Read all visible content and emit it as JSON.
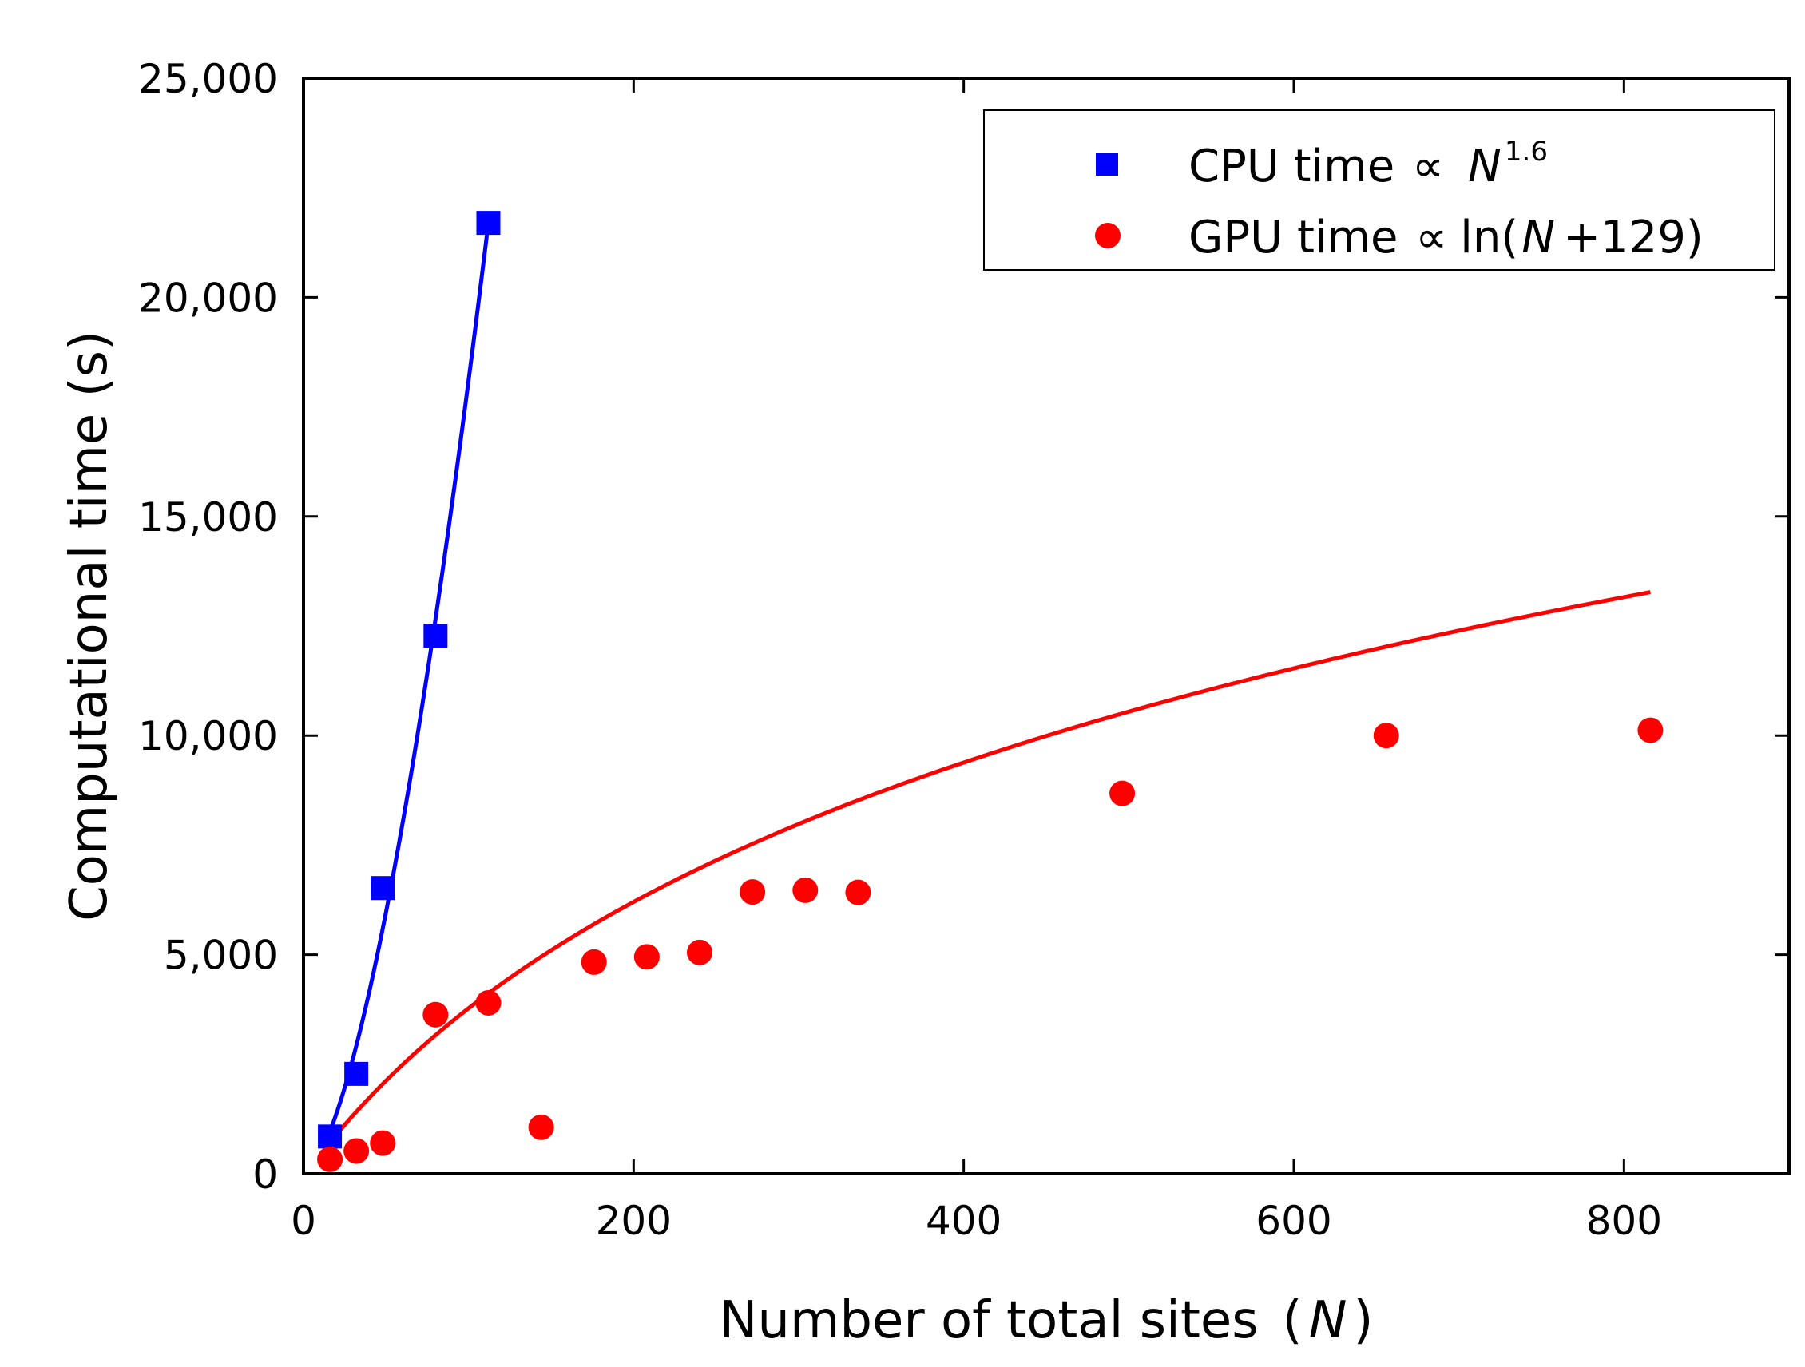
{
  "chart_data": {
    "type": "scatter",
    "title": "",
    "xlabel": "Number of total sites",
    "xlabel_symbol": "N",
    "ylabel": "Computational time (s)",
    "xlim": [
      0,
      900
    ],
    "ylim": [
      0,
      25000
    ],
    "x_ticks": [
      0,
      200,
      400,
      600,
      800
    ],
    "x_tick_labels": [
      "0",
      "200",
      "400",
      "600",
      "800"
    ],
    "y_ticks": [
      0,
      5000,
      10000,
      15000,
      20000,
      25000
    ],
    "y_tick_labels": [
      "0",
      "5,000",
      "10,000",
      "15,000",
      "20,000",
      "25,000"
    ],
    "legend_position": "top-right",
    "series": [
      {
        "name": "CPU time",
        "legend_prefix": "CPU time ",
        "legend_symbol": "N",
        "legend_exponent": "1.6",
        "marker": "square",
        "color": "#0000ff",
        "x": [
          16,
          32,
          48,
          80,
          112
        ],
        "y": [
          850,
          2280,
          6520,
          12280,
          21700
        ],
        "fit": {
          "form": "power",
          "exponent": 1.6
        }
      },
      {
        "name": "GPU time",
        "legend_prefix": "GPU time ",
        "legend_fn": "ln(",
        "legend_symbol": "N",
        "legend_suffix": "+129)",
        "marker": "circle",
        "color": "#ff0000",
        "x": [
          16,
          32,
          48,
          80,
          112,
          144,
          176,
          208,
          240,
          272,
          304,
          336,
          496,
          656,
          816
        ],
        "y": [
          330,
          520,
          700,
          3630,
          3900,
          1060,
          4830,
          4950,
          5050,
          6430,
          6470,
          6420,
          8680,
          10000,
          10120
        ],
        "fit": {
          "form": "log",
          "offset": 129,
          "coef": 6700,
          "intercept": -32630
        }
      }
    ]
  }
}
